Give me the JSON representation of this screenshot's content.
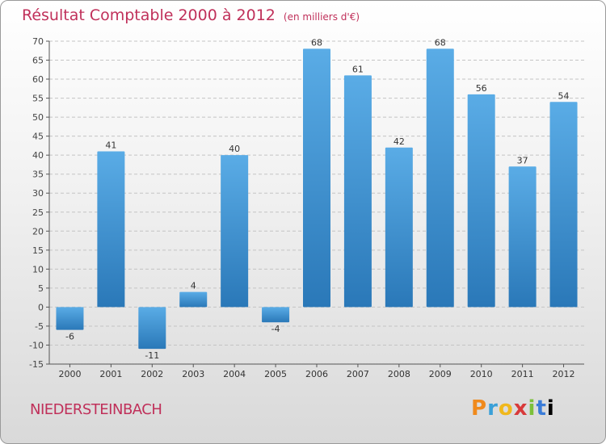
{
  "chart_data": {
    "type": "bar",
    "title": "Résultat Comptable 2000 à 2012",
    "subtitle": "(en milliers d'€)",
    "categories": [
      "2000",
      "2001",
      "2002",
      "2003",
      "2004",
      "2005",
      "2006",
      "2007",
      "2008",
      "2009",
      "2010",
      "2011",
      "2012"
    ],
    "values": [
      -6,
      41,
      -11,
      4,
      40,
      -4,
      68,
      61,
      42,
      68,
      56,
      37,
      54
    ],
    "ylim": [
      -15,
      70
    ],
    "yticks": [
      -15,
      -10,
      -5,
      0,
      5,
      10,
      15,
      20,
      25,
      30,
      35,
      40,
      45,
      50,
      55,
      60,
      65,
      70
    ],
    "grid": true,
    "colors": {
      "bar_top": "#5aace6",
      "bar_bottom": "#2a78b8",
      "title": "#c0305a"
    }
  },
  "footer": {
    "commune": "NIEDERSTEINBACH"
  },
  "logo": {
    "letters": [
      "P",
      "r",
      "o",
      "x",
      "i",
      "t",
      "i"
    ]
  }
}
